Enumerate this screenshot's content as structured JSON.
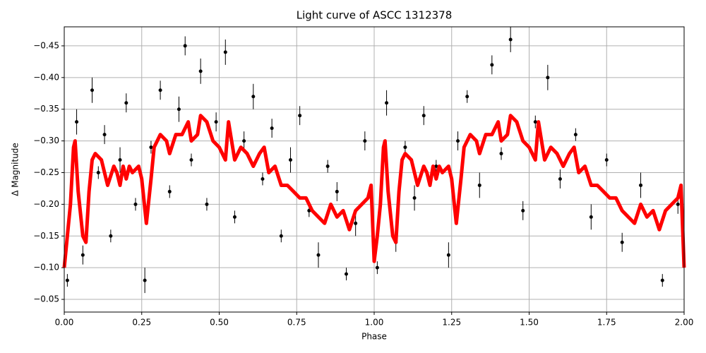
{
  "chart_data": {
    "type": "scatter",
    "title": "Light curve of ASCC 1312378",
    "x_label": "Phase",
    "y_label": "Δ Magnitude",
    "xlim": [
      0,
      2
    ],
    "ylim": [
      -0.03,
      -0.48
    ],
    "xticks": [
      {
        "value": 0,
        "label": "0.00"
      },
      {
        "value": 0.25,
        "label": "0.25"
      },
      {
        "value": 0.5,
        "label": "0.50"
      },
      {
        "value": 0.75,
        "label": "0.75"
      },
      {
        "value": 1,
        "label": "1.00"
      },
      {
        "value": 1.25,
        "label": "1.25"
      },
      {
        "value": 1.5,
        "label": "1.50"
      },
      {
        "value": 1.75,
        "label": "1.75"
      },
      {
        "value": 2,
        "label": "2.00"
      }
    ],
    "yticks": [
      {
        "value": -0.45,
        "label": "−0.45"
      },
      {
        "value": -0.4,
        "label": "−0.40"
      },
      {
        "value": -0.35,
        "label": "−0.35"
      },
      {
        "value": -0.3,
        "label": "−0.30"
      },
      {
        "value": -0.25,
        "label": "−0.25"
      },
      {
        "value": -0.2,
        "label": "−0.20"
      },
      {
        "value": -0.15,
        "label": "−0.15"
      },
      {
        "value": -0.1,
        "label": "−0.10"
      },
      {
        "value": -0.05,
        "label": "−0.05"
      }
    ],
    "grid": true,
    "points": {
      "color": "#000000",
      "x": [
        0.01,
        0.04,
        0.06,
        0.09,
        0.11,
        0.13,
        0.15,
        0.18,
        0.2,
        0.23,
        0.26,
        0.28,
        0.31,
        0.34,
        0.37,
        0.39,
        0.41,
        0.44,
        0.46,
        0.49,
        0.52,
        0.55,
        0.58,
        0.61,
        0.64,
        0.67,
        0.7,
        0.73,
        0.76,
        0.79,
        0.82,
        0.85,
        0.88,
        0.91,
        0.94,
        0.97,
        1.01,
        1.04,
        1.07,
        1.1,
        1.13,
        1.16,
        1.2,
        1.24,
        1.27,
        1.3,
        1.34,
        1.38,
        1.41,
        1.44,
        1.48,
        1.52,
        1.56,
        1.6,
        1.65,
        1.7,
        1.75,
        1.8,
        1.86,
        1.93,
        1.98
      ],
      "values": [
        -0.08,
        -0.33,
        -0.12,
        -0.38,
        -0.25,
        -0.31,
        -0.15,
        -0.27,
        -0.36,
        -0.2,
        -0.08,
        -0.29,
        -0.38,
        -0.22,
        -0.35,
        -0.45,
        -0.27,
        -0.41,
        -0.2,
        -0.33,
        -0.44,
        -0.18,
        -0.3,
        -0.37,
        -0.24,
        -0.32,
        -0.15,
        -0.27,
        -0.34,
        -0.19,
        -0.12,
        -0.26,
        -0.22,
        -0.09,
        -0.17,
        -0.3,
        -0.1,
        -0.36,
        -0.14,
        -0.29,
        -0.21,
        -0.34,
        -0.26,
        -0.12,
        -0.3,
        -0.37,
        -0.23,
        -0.42,
        -0.28,
        -0.46,
        -0.19,
        -0.33,
        -0.4,
        -0.24,
        -0.31,
        -0.18,
        -0.27,
        -0.14,
        -0.23,
        -0.08,
        -0.2
      ],
      "errors": [
        0.01,
        0.02,
        0.015,
        0.02,
        0.01,
        0.015,
        0.01,
        0.02,
        0.015,
        0.01,
        0.02,
        0.01,
        0.015,
        0.01,
        0.02,
        0.015,
        0.01,
        0.02,
        0.01,
        0.015,
        0.02,
        0.01,
        0.015,
        0.02,
        0.01,
        0.015,
        0.01,
        0.02,
        0.015,
        0.01,
        0.02,
        0.01,
        0.015,
        0.01,
        0.02,
        0.015,
        0.01,
        0.02,
        0.015,
        0.01,
        0.02,
        0.015,
        0.01,
        0.02,
        0.015,
        0.01,
        0.02,
        0.015,
        0.01,
        0.02,
        0.015,
        0.01,
        0.02,
        0.015,
        0.01,
        0.02,
        0.01,
        0.015,
        0.02,
        0.01,
        0.015
      ]
    },
    "curve": {
      "color": "#ff0000",
      "x": [
        0,
        0.01,
        0.02,
        0.03,
        0.035,
        0.045,
        0.06,
        0.07,
        0.08,
        0.09,
        0.1,
        0.12,
        0.14,
        0.16,
        0.17,
        0.18,
        0.19,
        0.2,
        0.21,
        0.22,
        0.24,
        0.25,
        0.265,
        0.28,
        0.29,
        0.31,
        0.33,
        0.34,
        0.36,
        0.38,
        0.4,
        0.41,
        0.43,
        0.44,
        0.46,
        0.48,
        0.5,
        0.52,
        0.53,
        0.55,
        0.57,
        0.59,
        0.61,
        0.63,
        0.645,
        0.66,
        0.68,
        0.7,
        0.72,
        0.74,
        0.76,
        0.78,
        0.8,
        0.82,
        0.84,
        0.86,
        0.88,
        0.9,
        0.92,
        0.94,
        0.96,
        0.98,
        0.99,
        1.0,
        1.01,
        1.02,
        1.03,
        1.035,
        1.045,
        1.06,
        1.07,
        1.08,
        1.09,
        1.1,
        1.12,
        1.14,
        1.16,
        1.17,
        1.18,
        1.19,
        1.2,
        1.21,
        1.22,
        1.24,
        1.25,
        1.265,
        1.28,
        1.29,
        1.31,
        1.33,
        1.34,
        1.36,
        1.38,
        1.4,
        1.41,
        1.43,
        1.44,
        1.46,
        1.48,
        1.5,
        1.52,
        1.53,
        1.55,
        1.57,
        1.59,
        1.61,
        1.63,
        1.645,
        1.66,
        1.68,
        1.7,
        1.72,
        1.74,
        1.76,
        1.78,
        1.8,
        1.82,
        1.84,
        1.86,
        1.88,
        1.9,
        1.92,
        1.94,
        1.96,
        1.98,
        1.99,
        2.0
      ],
      "values": [
        -0.1,
        -0.15,
        -0.2,
        -0.29,
        -0.3,
        -0.22,
        -0.15,
        -0.14,
        -0.22,
        -0.27,
        -0.28,
        -0.27,
        -0.23,
        -0.26,
        -0.25,
        -0.23,
        -0.26,
        -0.24,
        -0.26,
        -0.25,
        -0.26,
        -0.24,
        -0.17,
        -0.24,
        -0.29,
        -0.31,
        -0.3,
        -0.28,
        -0.31,
        -0.31,
        -0.33,
        -0.3,
        -0.31,
        -0.34,
        -0.33,
        -0.3,
        -0.29,
        -0.27,
        -0.33,
        -0.27,
        -0.29,
        -0.28,
        -0.26,
        -0.28,
        -0.29,
        -0.25,
        -0.26,
        -0.23,
        -0.23,
        -0.22,
        -0.21,
        -0.21,
        -0.19,
        -0.18,
        -0.17,
        -0.2,
        -0.18,
        -0.19,
        -0.16,
        -0.19,
        -0.2,
        -0.21,
        -0.23,
        -0.11,
        -0.15,
        -0.2,
        -0.29,
        -0.3,
        -0.22,
        -0.15,
        -0.14,
        -0.22,
        -0.27,
        -0.28,
        -0.27,
        -0.23,
        -0.26,
        -0.25,
        -0.23,
        -0.26,
        -0.24,
        -0.26,
        -0.25,
        -0.26,
        -0.24,
        -0.17,
        -0.24,
        -0.29,
        -0.31,
        -0.3,
        -0.28,
        -0.31,
        -0.31,
        -0.33,
        -0.3,
        -0.31,
        -0.34,
        -0.33,
        -0.3,
        -0.29,
        -0.27,
        -0.33,
        -0.27,
        -0.29,
        -0.28,
        -0.26,
        -0.28,
        -0.29,
        -0.25,
        -0.26,
        -0.23,
        -0.23,
        -0.22,
        -0.21,
        -0.21,
        -0.19,
        -0.18,
        -0.17,
        -0.2,
        -0.18,
        -0.19,
        -0.16,
        -0.19,
        -0.2,
        -0.21,
        -0.23,
        -0.1
      ]
    }
  }
}
